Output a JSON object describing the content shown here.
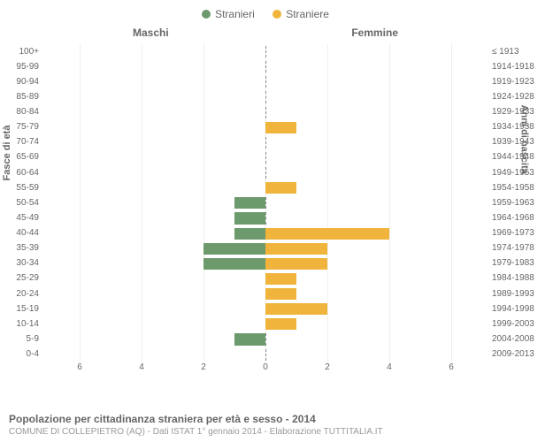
{
  "legend": {
    "male": {
      "label": "Stranieri",
      "color": "#6c9a6c"
    },
    "female": {
      "label": "Straniere",
      "color": "#f0b43c"
    }
  },
  "headers": {
    "left": "Maschi",
    "right": "Femmine"
  },
  "axis_labels": {
    "left": "Fasce di età",
    "right": "Anni di nascita"
  },
  "chart": {
    "type": "population-pyramid",
    "x_max": 6,
    "x_ticks": [
      6,
      4,
      2,
      0,
      2,
      4,
      6
    ],
    "male_color": "#6c9a6c",
    "female_color": "#f0b43c",
    "background": "#ffffff",
    "grid_color": "#eeeeee",
    "rows": [
      {
        "age": "100+",
        "birth": "≤ 1913",
        "m": 0,
        "f": 0
      },
      {
        "age": "95-99",
        "birth": "1914-1918",
        "m": 0,
        "f": 0
      },
      {
        "age": "90-94",
        "birth": "1919-1923",
        "m": 0,
        "f": 0
      },
      {
        "age": "85-89",
        "birth": "1924-1928",
        "m": 0,
        "f": 0
      },
      {
        "age": "80-84",
        "birth": "1929-1933",
        "m": 0,
        "f": 0
      },
      {
        "age": "75-79",
        "birth": "1934-1938",
        "m": 0,
        "f": 1
      },
      {
        "age": "70-74",
        "birth": "1939-1943",
        "m": 0,
        "f": 0
      },
      {
        "age": "65-69",
        "birth": "1944-1948",
        "m": 0,
        "f": 0
      },
      {
        "age": "60-64",
        "birth": "1949-1953",
        "m": 0,
        "f": 0
      },
      {
        "age": "55-59",
        "birth": "1954-1958",
        "m": 0,
        "f": 1
      },
      {
        "age": "50-54",
        "birth": "1959-1963",
        "m": 1,
        "f": 0
      },
      {
        "age": "45-49",
        "birth": "1964-1968",
        "m": 1,
        "f": 0
      },
      {
        "age": "40-44",
        "birth": "1969-1973",
        "m": 1,
        "f": 4
      },
      {
        "age": "35-39",
        "birth": "1974-1978",
        "m": 2,
        "f": 2
      },
      {
        "age": "30-34",
        "birth": "1979-1983",
        "m": 2,
        "f": 2
      },
      {
        "age": "25-29",
        "birth": "1984-1988",
        "m": 0,
        "f": 1
      },
      {
        "age": "20-24",
        "birth": "1989-1993",
        "m": 0,
        "f": 1
      },
      {
        "age": "15-19",
        "birth": "1994-1998",
        "m": 0,
        "f": 2
      },
      {
        "age": "10-14",
        "birth": "1999-2003",
        "m": 0,
        "f": 1
      },
      {
        "age": "5-9",
        "birth": "2004-2008",
        "m": 1,
        "f": 0
      },
      {
        "age": "0-4",
        "birth": "2009-2013",
        "m": 0,
        "f": 0
      }
    ]
  },
  "footer": {
    "title": "Popolazione per cittadinanza straniera per età e sesso - 2014",
    "subtitle": "COMUNE DI COLLEPIETRO (AQ) - Dati ISTAT 1° gennaio 2014 - Elaborazione TUTTITALIA.IT"
  }
}
